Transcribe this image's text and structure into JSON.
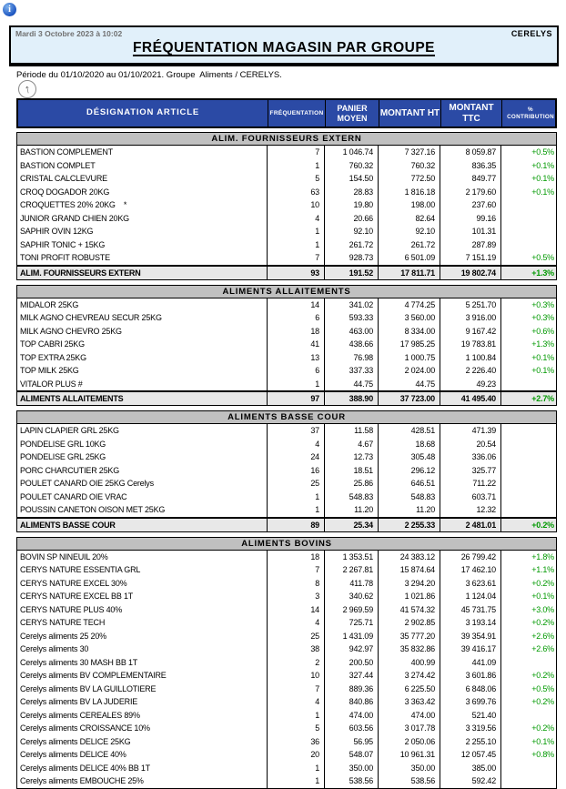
{
  "page": {
    "datetime": "Mardi 3 Octobre 2023 à 10:02",
    "company": "CERELYS",
    "title": "FRÉQUENTATION MAGASIN PAR GROUPE",
    "period_line": "Période du 01/10/2020 au 01/10/2021. Groupe  Aliments / CERELYS.",
    "info_icon_glyph": "i",
    "up_arrow_glyph": "↑"
  },
  "colors": {
    "table_header_bg": "#2B4AA5",
    "header_box_bg": "#E1F0FA",
    "section_header_bg": "#C0C0C0",
    "total_row_bg": "#E8E8E8",
    "positive_percent": "#009900"
  },
  "table": {
    "columns": [
      {
        "label": "DÉSIGNATION ARTICLE"
      },
      {
        "label": "FRÉQUENTATION"
      },
      {
        "label": "PANIER\nMOYEN"
      },
      {
        "label": "MONTANT HT"
      },
      {
        "label": "MONTANT TTC"
      },
      {
        "label": "%\nCONTRIBUTION"
      }
    ],
    "sections": [
      {
        "title": "ALIM. FOURNISSEURS EXTERN",
        "rows": [
          [
            "BASTION COMPLEMENT",
            "7",
            "1 046.74",
            "7 327.16",
            "8 059.87",
            "+0.5%"
          ],
          [
            "BASTION COMPLET",
            "1",
            "760.32",
            "760.32",
            "836.35",
            "+0.1%"
          ],
          [
            "CRISTAL CALCLEVURE",
            "5",
            "154.50",
            "772.50",
            "849.77",
            "+0.1%"
          ],
          [
            "CROQ DOGADOR 20KG",
            "63",
            "28.83",
            "1 816.18",
            "2 179.60",
            "+0.1%"
          ],
          [
            "CROQUETTES 20% 20KG    *",
            "10",
            "19.80",
            "198.00",
            "237.60",
            ""
          ],
          [
            "JUNIOR GRAND CHIEN 20KG",
            "4",
            "20.66",
            "82.64",
            "99.16",
            ""
          ],
          [
            "SAPHIR OVIN 12KG",
            "1",
            "92.10",
            "92.10",
            "101.31",
            ""
          ],
          [
            "SAPHIR TONIC + 15KG",
            "1",
            "261.72",
            "261.72",
            "287.89",
            ""
          ],
          [
            "TONI PROFIT ROBUSTE",
            "7",
            "928.73",
            "6 501.09",
            "7 151.19",
            "+0.5%"
          ]
        ],
        "total": [
          "ALIM. FOURNISSEURS EXTERN",
          "93",
          "191.52",
          "17 811.71",
          "19 802.74",
          "+1.3%"
        ]
      },
      {
        "title": "ALIMENTS ALLAITEMENTS",
        "rows": [
          [
            "MIDALOR 25KG",
            "14",
            "341.02",
            "4 774.25",
            "5 251.70",
            "+0.3%"
          ],
          [
            "MILK AGNO CHEVREAU SECUR 25KG",
            "6",
            "593.33",
            "3 560.00",
            "3 916.00",
            "+0.3%"
          ],
          [
            "MILK AGNO CHEVRO 25KG",
            "18",
            "463.00",
            "8 334.00",
            "9 167.42",
            "+0.6%"
          ],
          [
            "TOP CABRI 25KG",
            "41",
            "438.66",
            "17 985.25",
            "19 783.81",
            "+1.3%"
          ],
          [
            "TOP EXTRA 25KG",
            "13",
            "76.98",
            "1 000.75",
            "1 100.84",
            "+0.1%"
          ],
          [
            "TOP MILK 25KG",
            "6",
            "337.33",
            "2 024.00",
            "2 226.40",
            "+0.1%"
          ],
          [
            "VITALOR PLUS #",
            "1",
            "44.75",
            "44.75",
            "49.23",
            ""
          ]
        ],
        "total": [
          "ALIMENTS ALLAITEMENTS",
          "97",
          "388.90",
          "37 723.00",
          "41 495.40",
          "+2.7%"
        ]
      },
      {
        "title": "ALIMENTS BASSE COUR",
        "rows": [
          [
            "LAPIN CLAPIER GRL 25KG",
            "37",
            "11.58",
            "428.51",
            "471.39",
            ""
          ],
          [
            "PONDELISE GRL 10KG",
            "4",
            "4.67",
            "18.68",
            "20.54",
            ""
          ],
          [
            "PONDELISE GRL 25KG",
            "24",
            "12.73",
            "305.48",
            "336.06",
            ""
          ],
          [
            "PORC CHARCUTIER 25KG",
            "16",
            "18.51",
            "296.12",
            "325.77",
            ""
          ],
          [
            "POULET CANARD OIE 25KG Cerelys",
            "25",
            "25.86",
            "646.51",
            "711.22",
            ""
          ],
          [
            "POULET CANARD OIE VRAC",
            "1",
            "548.83",
            "548.83",
            "603.71",
            ""
          ],
          [
            "POUSSIN CANETON OISON MET 25KG",
            "1",
            "11.20",
            "11.20",
            "12.32",
            ""
          ]
        ],
        "total": [
          "ALIMENTS BASSE COUR",
          "89",
          "25.34",
          "2 255.33",
          "2 481.01",
          "+0.2%"
        ]
      },
      {
        "title": "ALIMENTS BOVINS",
        "rows": [
          [
            "BOVIN SP NINEUIL 20%",
            "18",
            "1 353.51",
            "24 383.12",
            "26 799.42",
            "+1.8%"
          ],
          [
            "CERYS NATURE ESSENTIA GRL",
            "7",
            "2 267.81",
            "15 874.64",
            "17 462.10",
            "+1.1%"
          ],
          [
            "CERYS NATURE EXCEL 30%",
            "8",
            "411.78",
            "3 294.20",
            "3 623.61",
            "+0.2%"
          ],
          [
            "CERYS NATURE EXCEL BB 1T",
            "3",
            "340.62",
            "1 021.86",
            "1 124.04",
            "+0.1%"
          ],
          [
            "CERYS NATURE PLUS 40%",
            "14",
            "2 969.59",
            "41 574.32",
            "45 731.75",
            "+3.0%"
          ],
          [
            "CERYS NATURE TECH",
            "4",
            "725.71",
            "2 902.85",
            "3 193.14",
            "+0.2%"
          ],
          [
            "Cerelys aliments 25 20%",
            "25",
            "1 431.09",
            "35 777.20",
            "39 354.91",
            "+2.6%"
          ],
          [
            "Cerelys aliments 30",
            "38",
            "942.97",
            "35 832.86",
            "39 416.17",
            "+2.6%"
          ],
          [
            "Cerelys aliments 30 MASH BB 1T",
            "2",
            "200.50",
            "400.99",
            "441.09",
            ""
          ],
          [
            "Cerelys aliments BV COMPLEMENTAIRE",
            "10",
            "327.44",
            "3 274.42",
            "3 601.86",
            "+0.2%"
          ],
          [
            "Cerelys aliments BV LA GUILLOTIERE",
            "7",
            "889.36",
            "6 225.50",
            "6 848.06",
            "+0.5%"
          ],
          [
            "Cerelys aliments BV LA JUDERIE",
            "4",
            "840.86",
            "3 363.42",
            "3 699.76",
            "+0.2%"
          ],
          [
            "Cerelys aliments CEREALES 89%",
            "1",
            "474.00",
            "474.00",
            "521.40",
            ""
          ],
          [
            "Cerelys aliments CROISSANCE 10%",
            "5",
            "603.56",
            "3 017.78",
            "3 319.56",
            "+0.2%"
          ],
          [
            "Cerelys aliments DELICE 25KG",
            "36",
            "56.95",
            "2 050.06",
            "2 255.10",
            "+0.1%"
          ],
          [
            "Cerelys aliments DELICE 40%",
            "20",
            "548.07",
            "10 961.31",
            "12 057.45",
            "+0.8%"
          ],
          [
            "Cerelys aliments DELICE 40% BB 1T",
            "1",
            "350.00",
            "350.00",
            "385.00",
            ""
          ],
          [
            "Cerelys aliments EMBOUCHE 25%",
            "1",
            "538.56",
            "538.56",
            "592.42",
            ""
          ]
        ],
        "total": null
      }
    ]
  }
}
